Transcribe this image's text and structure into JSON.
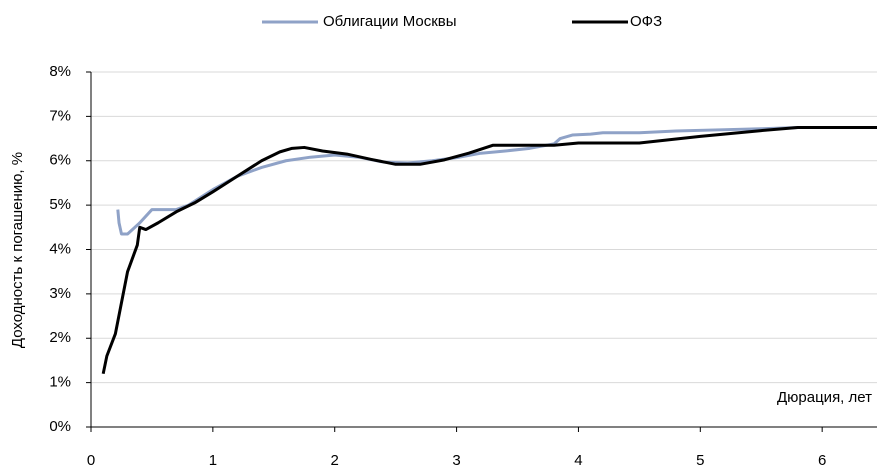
{
  "chart_data": {
    "type": "line",
    "y_label": "Доходность к погашению, %",
    "annotation": "Дюрация, лет",
    "xlim": [
      0,
      6.45
    ],
    "xticks": [
      0,
      1,
      2,
      3,
      4,
      5,
      6
    ],
    "ylim": [
      0,
      8
    ],
    "yticks": [
      {
        "value": 0,
        "label": "0%"
      },
      {
        "value": 1,
        "label": "1%"
      },
      {
        "value": 2,
        "label": "2%"
      },
      {
        "value": 3,
        "label": "3%"
      },
      {
        "value": 4,
        "label": "4%"
      },
      {
        "value": 5,
        "label": "5%"
      },
      {
        "value": 6,
        "label": "6%"
      },
      {
        "value": 7,
        "label": "7%"
      },
      {
        "value": 8,
        "label": "8%"
      }
    ],
    "grid": true,
    "legend": "top",
    "series": [
      {
        "name": "Облигации Москвы",
        "color": "#8fa2c7",
        "x": [
          0.22,
          0.23,
          0.25,
          0.3,
          0.4,
          0.5,
          0.6,
          0.7,
          0.8,
          1.0,
          1.2,
          1.4,
          1.6,
          1.8,
          2.0,
          2.2,
          2.4,
          2.6,
          2.8,
          3.0,
          3.2,
          3.4,
          3.6,
          3.8,
          3.85,
          3.95,
          4.1,
          4.2,
          4.5,
          4.8,
          5.2,
          5.5,
          5.8,
          6.45
        ],
        "values": [
          4.9,
          4.6,
          4.35,
          4.35,
          4.6,
          4.9,
          4.9,
          4.9,
          5.0,
          5.35,
          5.65,
          5.85,
          6.0,
          6.08,
          6.13,
          6.08,
          5.97,
          5.95,
          6.0,
          6.07,
          6.17,
          6.22,
          6.28,
          6.38,
          6.5,
          6.58,
          6.6,
          6.63,
          6.63,
          6.67,
          6.7,
          6.72,
          6.75,
          6.75
        ]
      },
      {
        "name": "ОФЗ",
        "color": "#000000",
        "x": [
          0.1,
          0.13,
          0.2,
          0.3,
          0.38,
          0.4,
          0.45,
          0.55,
          0.7,
          0.85,
          1.0,
          1.2,
          1.4,
          1.55,
          1.65,
          1.75,
          1.9,
          2.1,
          2.3,
          2.5,
          2.7,
          2.9,
          3.1,
          3.3,
          3.8,
          4.0,
          4.5,
          5.0,
          5.5,
          5.8,
          6.45
        ],
        "values": [
          1.2,
          1.6,
          2.1,
          3.5,
          4.1,
          4.5,
          4.45,
          4.6,
          4.85,
          5.05,
          5.3,
          5.65,
          6.0,
          6.2,
          6.28,
          6.3,
          6.22,
          6.15,
          6.03,
          5.92,
          5.92,
          6.02,
          6.17,
          6.35,
          6.35,
          6.4,
          6.4,
          6.55,
          6.68,
          6.75,
          6.75
        ]
      }
    ]
  }
}
